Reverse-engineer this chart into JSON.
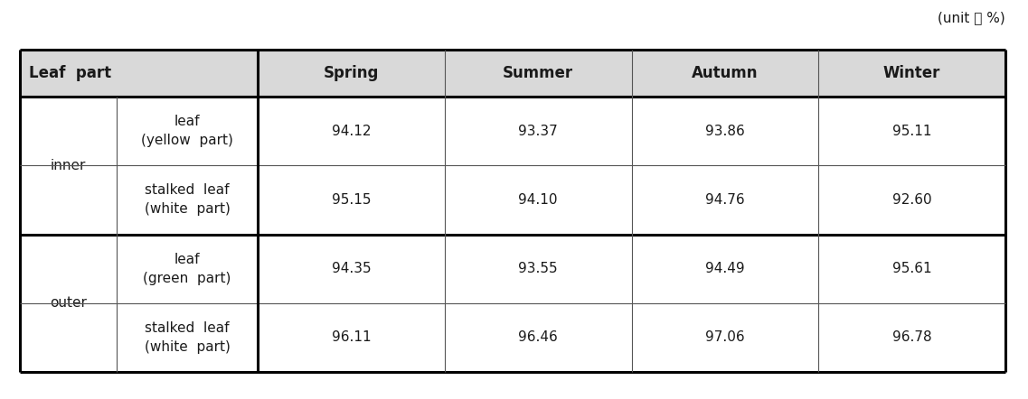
{
  "unit_label": "(unit ： %)",
  "header": [
    "Leaf  part",
    "Spring",
    "Summer",
    "Autumn",
    "Winter"
  ],
  "row_groups": [
    {
      "group_label": "inner",
      "rows": [
        {
          "sub_label": "leaf\n(yellow  part)",
          "values": [
            "94.12",
            "93.37",
            "93.86",
            "95.11"
          ]
        },
        {
          "sub_label": "stalked  leaf\n(white  part)",
          "values": [
            "95.15",
            "94.10",
            "94.76",
            "92.60"
          ]
        }
      ]
    },
    {
      "group_label": "outer",
      "rows": [
        {
          "sub_label": "leaf\n(green  part)",
          "values": [
            "94.35",
            "93.55",
            "94.49",
            "95.61"
          ]
        },
        {
          "sub_label": "stalked  leaf\n(white  part)",
          "values": [
            "96.11",
            "96.46",
            "97.06",
            "96.78"
          ]
        }
      ]
    }
  ],
  "header_bg": "#d9d9d9",
  "cell_bg": "#ffffff",
  "thin_lw": 0.8,
  "thick_lw": 2.2,
  "thin_color": "#555555",
  "thick_color": "#000000",
  "header_fontsize": 12,
  "cell_fontsize": 11,
  "group_fontsize": 11,
  "unit_fontsize": 11,
  "font_color": "#1a1a1a"
}
